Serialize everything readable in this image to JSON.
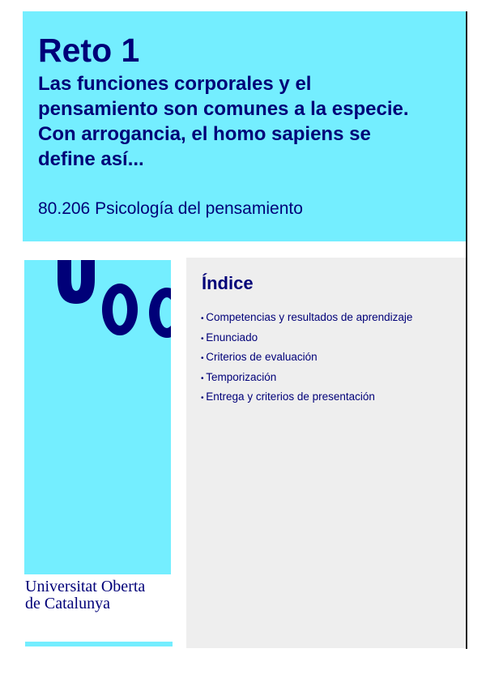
{
  "header": {
    "title": "Reto 1",
    "subtitle": "Las funciones corporales y el pensamiento son comunes a la especie. Con arrogancia, el homo sapiens se define así...",
    "course": "80.206 Psicología del pensamiento"
  },
  "branding": {
    "logo_text": "UOC",
    "university_line1": "Universitat Oberta",
    "university_line2": "de Catalunya"
  },
  "index": {
    "title": "Índice",
    "items": [
      "Competencias y resultados de aprendizaje",
      "Enunciado",
      "Criterios de evaluación",
      "Temporización",
      "Entrega y criterios de presentación"
    ]
  },
  "colors": {
    "accent": "#74eeff",
    "text": "#000078",
    "panel": "#eeeeee"
  }
}
